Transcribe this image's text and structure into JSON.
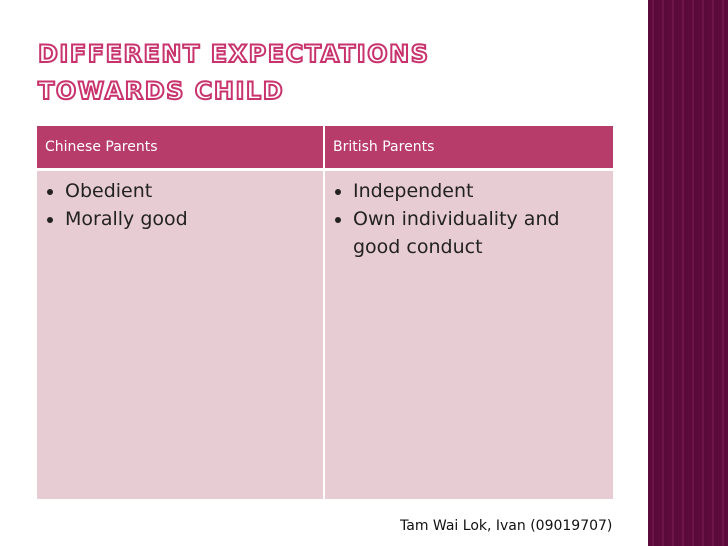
{
  "title": {
    "lines": [
      "DIFFERENT EXPECTATIONS",
      "TOWARDS CHILD"
    ]
  },
  "table": {
    "headers": [
      "Chinese Parents",
      "British Parents"
    ],
    "rows": [
      [
        [
          "Obedient",
          "Morally good"
        ],
        [
          "Independent",
          "Own individuality and good conduct"
        ]
      ]
    ]
  },
  "footer": "Tam Wai Lok, Ivan (09019707)"
}
